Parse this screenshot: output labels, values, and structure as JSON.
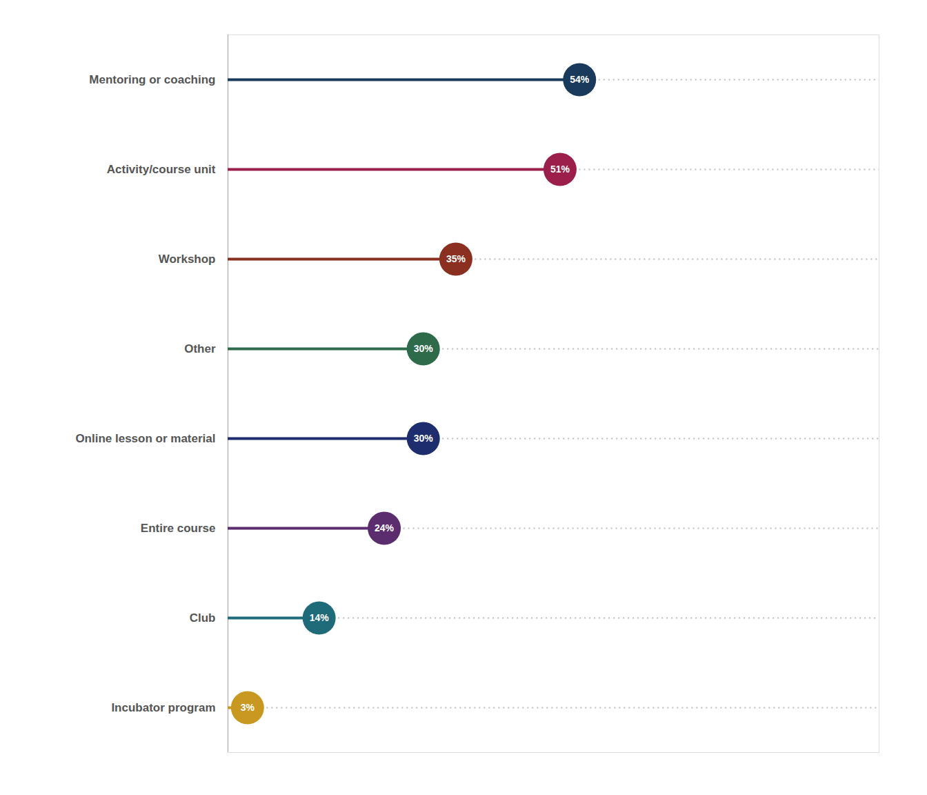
{
  "chart_data": {
    "type": "lollipop",
    "orientation": "horizontal",
    "categories": [
      "Mentoring or coaching",
      "Activity/course unit",
      "Workshop",
      "Other",
      "Online lesson or material",
      "Entire course",
      "Club",
      "Incubator program"
    ],
    "values": [
      54,
      51,
      35,
      30,
      30,
      24,
      14,
      3
    ],
    "value_labels": [
      "54%",
      "51%",
      "35%",
      "30%",
      "30%",
      "24%",
      "14%",
      "3%"
    ],
    "colors": [
      "#1a3a5c",
      "#9b1f4a",
      "#8b3020",
      "#2d6b4a",
      "#1e2d6e",
      "#5c2d6e",
      "#1f6b7a",
      "#c89820"
    ],
    "xlim": [
      0,
      100
    ],
    "data_labels": true,
    "tick_labels": "y",
    "grid": false,
    "line_style": "dotted"
  }
}
